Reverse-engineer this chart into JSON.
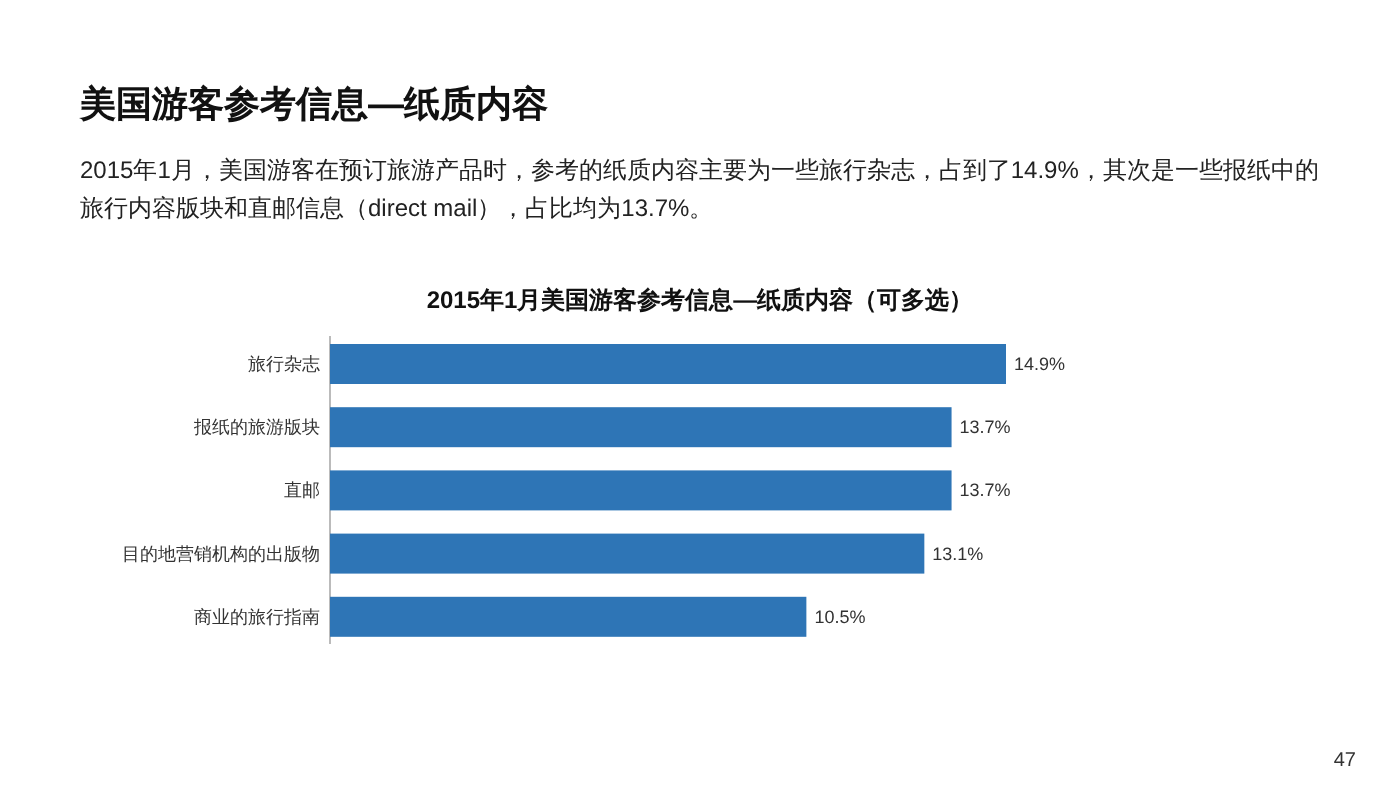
{
  "chart_data": {
    "type": "bar",
    "orientation": "horizontal",
    "title": "美国游客参考信息—纸质内容",
    "subtitle": "2015年1月，美国游客在预订旅游产品时，参考的纸质内容主要为一些旅行杂志，占到了14.9%，其次是一些报纸中的旅行内容版块和直邮信息（direct mail），占比均为13.7%。",
    "annotations": [
      "2015年1月美国游客参考信息—纸质内容（可多选）",
      "47"
    ],
    "categories": [
      "旅行杂志",
      "报纸的旅游版块",
      "直邮",
      "目的地营销机构的出版物",
      "商业的旅行指南"
    ],
    "values": [
      14.9,
      13.7,
      13.7,
      13.1,
      10.5
    ],
    "value_labels": [
      "14.9%",
      "13.7%",
      "13.7%",
      "13.1%",
      "10.5%"
    ],
    "color": "#2e75b6"
  }
}
